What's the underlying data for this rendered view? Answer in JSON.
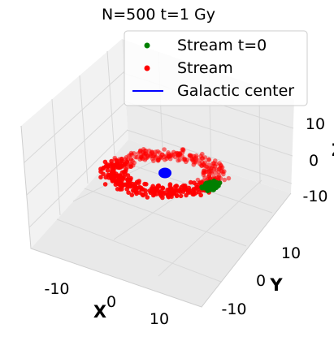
{
  "chart_data": {
    "type": "scatter",
    "projection": "3d",
    "title": "N=500 t=1 Gy",
    "xlabel": "X",
    "ylabel": "Y",
    "zlabel": "Z",
    "xticks": [
      "-10",
      "0",
      "10"
    ],
    "yticks": [
      "-10",
      "0",
      "10"
    ],
    "zticks": [
      "-10",
      "0",
      "10"
    ],
    "xlim": [
      -15,
      15
    ],
    "ylim": [
      -15,
      15
    ],
    "zlim": [
      -15,
      15
    ],
    "grid": true,
    "legend_position": "top-right",
    "legend": [
      {
        "label": "Stream t=0",
        "marker": "dot",
        "color": "#008000"
      },
      {
        "label": "Stream",
        "marker": "dot",
        "color": "#ff0000"
      },
      {
        "label": "Galactic center",
        "marker": "line",
        "color": "#0000ff"
      }
    ],
    "series": [
      {
        "name": "Stream t=0",
        "color": "#008000",
        "count": 60,
        "x": 9.5,
        "y": 2.0,
        "z": -2.0
      },
      {
        "name": "Stream",
        "color": "#ff0000",
        "count": 500,
        "orbit_radius_range": [
          8,
          12
        ],
        "orbit_plane": "XY"
      },
      {
        "name": "Galactic center",
        "color": "#0000ff",
        "x": 0,
        "y": 0,
        "z": 0
      }
    ]
  }
}
